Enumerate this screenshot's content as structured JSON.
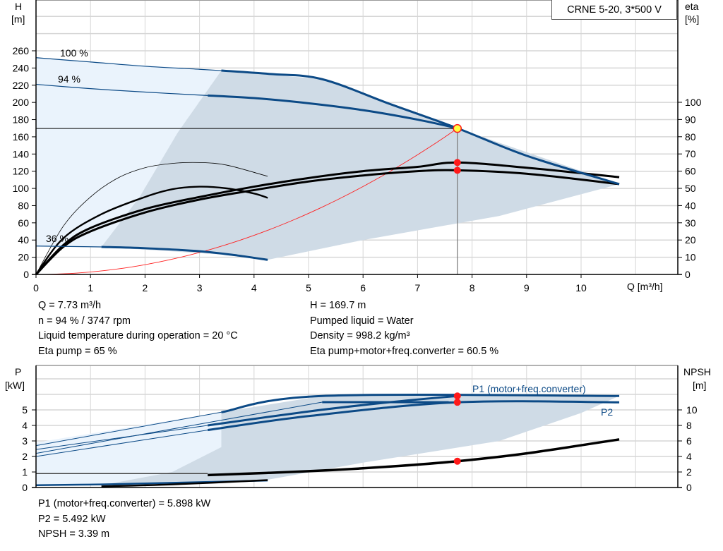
{
  "title": "CRNE 5-20, 3*500 V",
  "colors": {
    "curve_blue": "#0c4a86",
    "light_area": "#eaf3fc",
    "dark_area": "#cfdbe6",
    "system_curve": "#ff2020",
    "op_point": "#ff1a1a",
    "op_point_head": "#ffff40",
    "grid": "#d6d6d6"
  },
  "chart_data": [
    {
      "type": "line",
      "name_id": "head-efficiency",
      "xlabel": "Q [m³/h]",
      "ylabel_left": [
        "H",
        "[m]"
      ],
      "ylabel_right": [
        "eta",
        "[%]"
      ],
      "xlim": [
        0,
        11.5
      ],
      "ylim_left": [
        0,
        320
      ],
      "ylim_right": [
        0,
        160
      ],
      "x_ticks": [
        0,
        1,
        2,
        3,
        4,
        5,
        6,
        7,
        8,
        9,
        10
      ],
      "y_ticks_left": [
        0,
        20,
        40,
        60,
        80,
        100,
        120,
        140,
        160,
        180,
        200,
        220,
        240,
        260
      ],
      "y_ticks_right": [
        0,
        10,
        20,
        30,
        40,
        50,
        60,
        70,
        80,
        90,
        100
      ],
      "grid": true,
      "head_curves": [
        {
          "label": "100 %",
          "thin": [
            [
              0,
              252
            ],
            [
              1,
              247
            ],
            [
              2,
              242
            ],
            [
              3,
              238.5
            ],
            [
              3.4,
              237
            ]
          ],
          "thick": [
            [
              3.4,
              237
            ],
            [
              4.3,
              233
            ],
            [
              5.25,
              227
            ],
            [
              6.5,
              198
            ],
            [
              7.73,
              170
            ],
            [
              9,
              138
            ],
            [
              10.7,
              105
            ]
          ]
        },
        {
          "label": "94 %",
          "thin": [
            [
              0,
              221
            ],
            [
              1,
              216
            ],
            [
              2,
              212
            ],
            [
              3.15,
              208
            ]
          ],
          "thick": [
            [
              3.15,
              208
            ],
            [
              4,
              205
            ],
            [
              5,
              199
            ],
            [
              6,
              191
            ],
            [
              7,
              180
            ],
            [
              7.73,
              170
            ]
          ]
        },
        {
          "label": "36 %",
          "thin": [
            [
              0,
              33
            ],
            [
              1.2,
              32
            ]
          ],
          "thick": [
            [
              1.2,
              32
            ],
            [
              2,
              30.5
            ],
            [
              3,
              27
            ],
            [
              3.7,
              22
            ],
            [
              4.25,
              17
            ]
          ]
        }
      ],
      "efficiency_curves": [
        {
          "width": "thin",
          "points": [
            [
              0,
              0
            ],
            [
              0.5,
              28
            ],
            [
              1,
              45
            ],
            [
              1.5,
              56
            ],
            [
              2,
              62
            ],
            [
              2.5,
              64.5
            ],
            [
              3,
              65
            ],
            [
              3.5,
              63.5
            ],
            [
              4.25,
              57
            ]
          ]
        },
        {
          "width": "thick",
          "points": [
            [
              0,
              0
            ],
            [
              0.5,
              21
            ],
            [
              1.2,
              35
            ],
            [
              2,
              45
            ],
            [
              2.5,
              49.5
            ],
            [
              3,
              51
            ],
            [
              3.5,
              50
            ],
            [
              4,
              47
            ],
            [
              4.25,
              44.5
            ]
          ]
        },
        {
          "width": "thick",
          "points": [
            [
              0,
              0
            ],
            [
              0.5,
              17
            ],
            [
              1,
              27
            ],
            [
              2,
              38
            ],
            [
              3,
              45
            ],
            [
              4,
              51
            ],
            [
              5,
              56
            ],
            [
              6,
              60
            ],
            [
              7,
              62.5
            ],
            [
              7.73,
              65
            ],
            [
              9,
              62
            ],
            [
              10.7,
              56.5
            ]
          ]
        },
        {
          "width": "thick",
          "points": [
            [
              0,
              0
            ],
            [
              0.5,
              16
            ],
            [
              1,
              25
            ],
            [
              2,
              36
            ],
            [
              3,
              43.5
            ],
            [
              4,
              49
            ],
            [
              5,
              54
            ],
            [
              6,
              57.5
            ],
            [
              7,
              60
            ],
            [
              7.73,
              60.5
            ],
            [
              9,
              58.5
            ],
            [
              10.7,
              52.5
            ]
          ]
        }
      ],
      "system_curve": {
        "h_at_duty": 169.7,
        "q_at_duty": 7.73
      },
      "efficiency_area_left": [
        [
          0,
          33
        ],
        [
          0,
          252
        ],
        [
          3.4,
          237
        ],
        [
          2.6,
          165
        ],
        [
          1.9,
          90
        ],
        [
          1.2,
          32
        ]
      ],
      "operating_area": [
        [
          1.2,
          32
        ],
        [
          1.9,
          90
        ],
        [
          2.6,
          165
        ],
        [
          3.4,
          237
        ],
        [
          5.25,
          227
        ],
        [
          7.73,
          170
        ],
        [
          10.7,
          105
        ],
        [
          8.5,
          68
        ],
        [
          6,
          40
        ],
        [
          4.25,
          17
        ],
        [
          3.7,
          22
        ]
      ],
      "operating_point": {
        "Q": 7.73,
        "H": 169.7,
        "eta_pump": 65,
        "eta_total": 60.5
      }
    },
    {
      "type": "line",
      "name_id": "power-npsh",
      "ylabel_left": [
        "P",
        "[kW]"
      ],
      "ylabel_right": [
        "NPSH",
        "[m]"
      ],
      "xlim": [
        0,
        11.5
      ],
      "ylim_left": [
        0,
        8
      ],
      "ylim_right": [
        0,
        16
      ],
      "y_ticks_left": [
        0,
        1,
        2,
        3,
        4,
        5
      ],
      "y_ticks_right": [
        0,
        2,
        4,
        6,
        8,
        10
      ],
      "grid": true,
      "series": [
        {
          "name": "P1 (motor+freq.converter)",
          "thin": [
            [
              0,
              2.7
            ],
            [
              3.4,
              4.85
            ]
          ],
          "thick": [
            [
              3.4,
              4.85
            ],
            [
              5.25,
              5.9
            ],
            [
              10.7,
              5.9
            ]
          ]
        },
        {
          "name": "P2",
          "thin": [
            [
              0,
              2.0
            ],
            [
              3.15,
              3.7
            ]
          ],
          "thick": [
            [
              3.15,
              3.7
            ],
            [
              5,
              4.6
            ],
            [
              7.73,
              5.49
            ],
            [
              10.7,
              5.49
            ]
          ]
        },
        {
          "name": "",
          "thin": [
            [
              0,
              2.45
            ],
            [
              3.15,
              4.0
            ]
          ],
          "thick": [
            [
              3.15,
              4.0
            ],
            [
              5,
              4.9
            ],
            [
              6.5,
              5.5
            ],
            [
              7.73,
              5.898
            ]
          ]
        },
        {
          "name": "",
          "thin": [
            [
              0,
              2.2
            ],
            [
              5.25,
              5.5
            ]
          ],
          "thick": [
            [
              5.25,
              5.5
            ],
            [
              7.73,
              5.492
            ]
          ]
        }
      ],
      "npsh_curve": {
        "thin": [
          [
            0,
            1.8
          ],
          [
            3.15,
            1.8
          ]
        ],
        "thick": [
          [
            3.15,
            1.6
          ],
          [
            5,
            2.1
          ],
          [
            6.5,
            2.7
          ],
          [
            7.73,
            3.39
          ],
          [
            9,
            4.4
          ],
          [
            10.7,
            6.2
          ]
        ]
      },
      "npsh_low": [
        [
          1.2,
          0.15
        ],
        [
          2.5,
          0.4
        ],
        [
          4.25,
          0.95
        ]
      ],
      "p_low": [
        [
          0,
          0.15
        ],
        [
          1.2,
          0.2
        ],
        [
          2.5,
          0.3
        ],
        [
          4.25,
          0.45
        ]
      ],
      "operating_point": {
        "P1": 5.898,
        "P2": 5.492,
        "NPSH": 3.39
      }
    }
  ],
  "duty_info": {
    "left": [
      "Q = 7.73 m³/h",
      "n = 94 % / 3747 rpm",
      "Liquid temperature during operation = 20 °C",
      "Eta pump = 65 %"
    ],
    "right": [
      "H = 169.7 m",
      "Pumped liquid = Water",
      "Density = 998.2 kg/m³",
      "Eta pump+motor+freq.converter = 60.5 %"
    ],
    "bottom": [
      "P1 (motor+freq.converter) = 5.898 kW",
      "P2 = 5.492 kW",
      "NPSH = 3.39 m"
    ]
  }
}
